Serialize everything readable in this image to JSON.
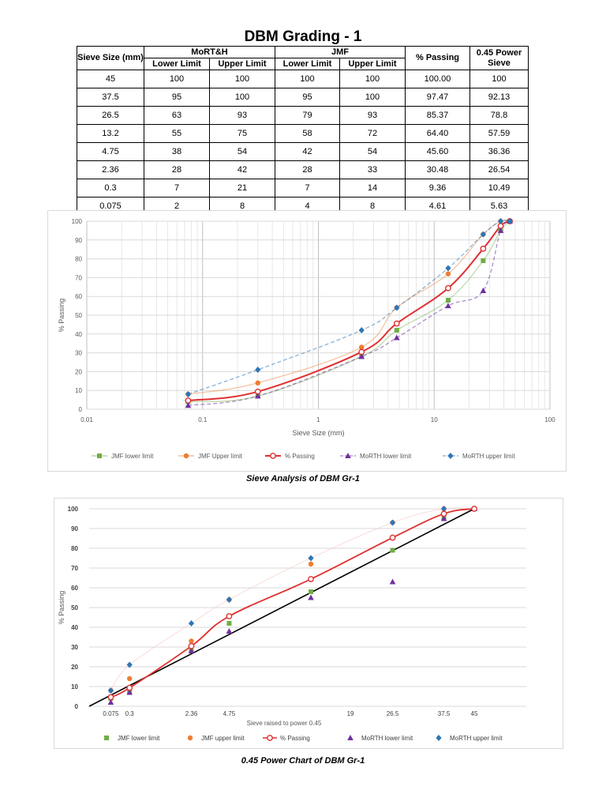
{
  "title": "DBM Grading - 1",
  "table": {
    "headers": {
      "sieve_size": "Sieve Size (mm)",
      "morth": "MoRT&H",
      "jmf": "JMF",
      "passing": "% Passing",
      "power_l1": "0.45 Power",
      "power_l2": "Sieve",
      "lower": "Lower Limit",
      "upper": "Upper Limit"
    },
    "rows": [
      [
        "45",
        "100",
        "100",
        "100",
        "100",
        "100.00",
        "100"
      ],
      [
        "37.5",
        "95",
        "100",
        "95",
        "100",
        "97.47",
        "92.13"
      ],
      [
        "26.5",
        "63",
        "93",
        "79",
        "93",
        "85.37",
        "78.8"
      ],
      [
        "13.2",
        "55",
        "75",
        "58",
        "72",
        "64.40",
        "57.59"
      ],
      [
        "4.75",
        "38",
        "54",
        "42",
        "54",
        "45.60",
        "36.36"
      ],
      [
        "2.36",
        "28",
        "42",
        "28",
        "33",
        "30.48",
        "26.54"
      ],
      [
        "0.3",
        "7",
        "21",
        "7",
        "14",
        "9.36",
        "10.49"
      ],
      [
        "0.075",
        "2",
        "8",
        "4",
        "8",
        "4.61",
        "5.63"
      ]
    ]
  },
  "captions": {
    "chart1": "Sieve Analysis of DBM Gr-1",
    "chart2": "0.45 Power Chart of DBM Gr-1"
  },
  "chart_data": [
    {
      "type": "line",
      "x_scale": "log",
      "xlim": [
        0.01,
        100
      ],
      "ylim": [
        0,
        100
      ],
      "xlabel": "Sieve Size (mm)",
      "ylabel": "% Passing",
      "x_ticks": [
        "0.01",
        "0.1",
        "1",
        "10",
        "100"
      ],
      "y_ticks": [
        "0",
        "10",
        "20",
        "30",
        "40",
        "50",
        "60",
        "70",
        "80",
        "90",
        "100"
      ],
      "grid": true,
      "legend_position": "bottom",
      "x": [
        45,
        37.5,
        26.5,
        13.2,
        4.75,
        2.36,
        0.3,
        0.075
      ],
      "series": [
        {
          "name": "JMF lower limit",
          "values": [
            100,
            95,
            79,
            58,
            42,
            28,
            7,
            4
          ],
          "color": "#70ad47",
          "marker": "square",
          "style": "solid-light"
        },
        {
          "name": "JMF Upper limit",
          "values": [
            100,
            100,
            93,
            72,
            54,
            33,
            14,
            8
          ],
          "color": "#ed7d31",
          "marker": "circle",
          "style": "solid-light"
        },
        {
          "name": "% Passing",
          "values": [
            100,
            97.47,
            85.37,
            64.4,
            45.6,
            30.48,
            9.36,
            4.61
          ],
          "color": "#e03030",
          "marker": "circle-open",
          "style": "solid"
        },
        {
          "name": "MoRTH lower limit",
          "values": [
            100,
            95,
            63,
            55,
            38,
            28,
            7,
            2
          ],
          "color": "#7030a0",
          "marker": "triangle",
          "style": "dashed"
        },
        {
          "name": "MoRTH upper limit",
          "values": [
            100,
            100,
            93,
            75,
            54,
            42,
            21,
            8
          ],
          "color": "#2e75b6",
          "marker": "diamond",
          "style": "dashed"
        }
      ]
    },
    {
      "type": "scatter",
      "x_scale": "power 0.45",
      "xlabel": "Sieve raised to power 0.45",
      "ylabel": "% Passing",
      "ylim": [
        0,
        100
      ],
      "y_ticks": [
        "0",
        "10",
        "20",
        "30",
        "40",
        "50",
        "60",
        "70",
        "80",
        "90",
        "100"
      ],
      "x_tick_labels": [
        {
          "value": 0.075,
          "label": "0.075"
        },
        {
          "value": 0.3,
          "label": "0.3"
        },
        {
          "value": 2.36,
          "label": "2.36"
        },
        {
          "value": 4.75,
          "label": "4.75"
        },
        {
          "value": 19,
          "label": "19"
        },
        {
          "value": 26.5,
          "label": "26.5"
        },
        {
          "value": 37.5,
          "label": "37.5"
        },
        {
          "value": 45,
          "label": "45"
        }
      ],
      "grid": true,
      "legend_position": "bottom",
      "max_density_line": {
        "from": [
          0,
          0
        ],
        "to": [
          45,
          100
        ],
        "color": "#000000"
      },
      "series": [
        {
          "name": "JMF lower limit",
          "color": "#70ad47",
          "marker": "square",
          "x": [
            0.075,
            0.3,
            2.36,
            4.75,
            13.2,
            26.5,
            37.5,
            45
          ],
          "values": [
            4,
            7,
            28,
            42,
            58,
            79,
            95,
            100
          ]
        },
        {
          "name": "JMF upper limit",
          "color": "#ed7d31",
          "marker": "circle",
          "x": [
            0.075,
            0.3,
            2.36,
            4.75,
            13.2,
            26.5,
            37.5,
            45
          ],
          "values": [
            8,
            14,
            33,
            54,
            72,
            93,
            100,
            100
          ]
        },
        {
          "name": "% Passing",
          "color": "#e03030",
          "marker": "circle-open",
          "line": true,
          "x": [
            0.075,
            0.3,
            2.36,
            4.75,
            13.2,
            26.5,
            37.5,
            45
          ],
          "values": [
            4.61,
            9.36,
            30.48,
            45.6,
            64.4,
            85.37,
            97.47,
            100
          ]
        },
        {
          "name": "MoRTH lower limit",
          "color": "#7030a0",
          "marker": "triangle",
          "x": [
            0.075,
            0.3,
            2.36,
            4.75,
            13.2,
            26.5,
            37.5,
            45
          ],
          "values": [
            2,
            7,
            28,
            38,
            55,
            63,
            95,
            100
          ]
        },
        {
          "name": "MoRTH upper limit",
          "color": "#2e75b6",
          "marker": "diamond",
          "x": [
            0.075,
            0.3,
            2.36,
            4.75,
            13.2,
            26.5,
            37.5,
            45
          ],
          "values": [
            8,
            21,
            42,
            54,
            75,
            93,
            100,
            100
          ]
        }
      ]
    }
  ]
}
